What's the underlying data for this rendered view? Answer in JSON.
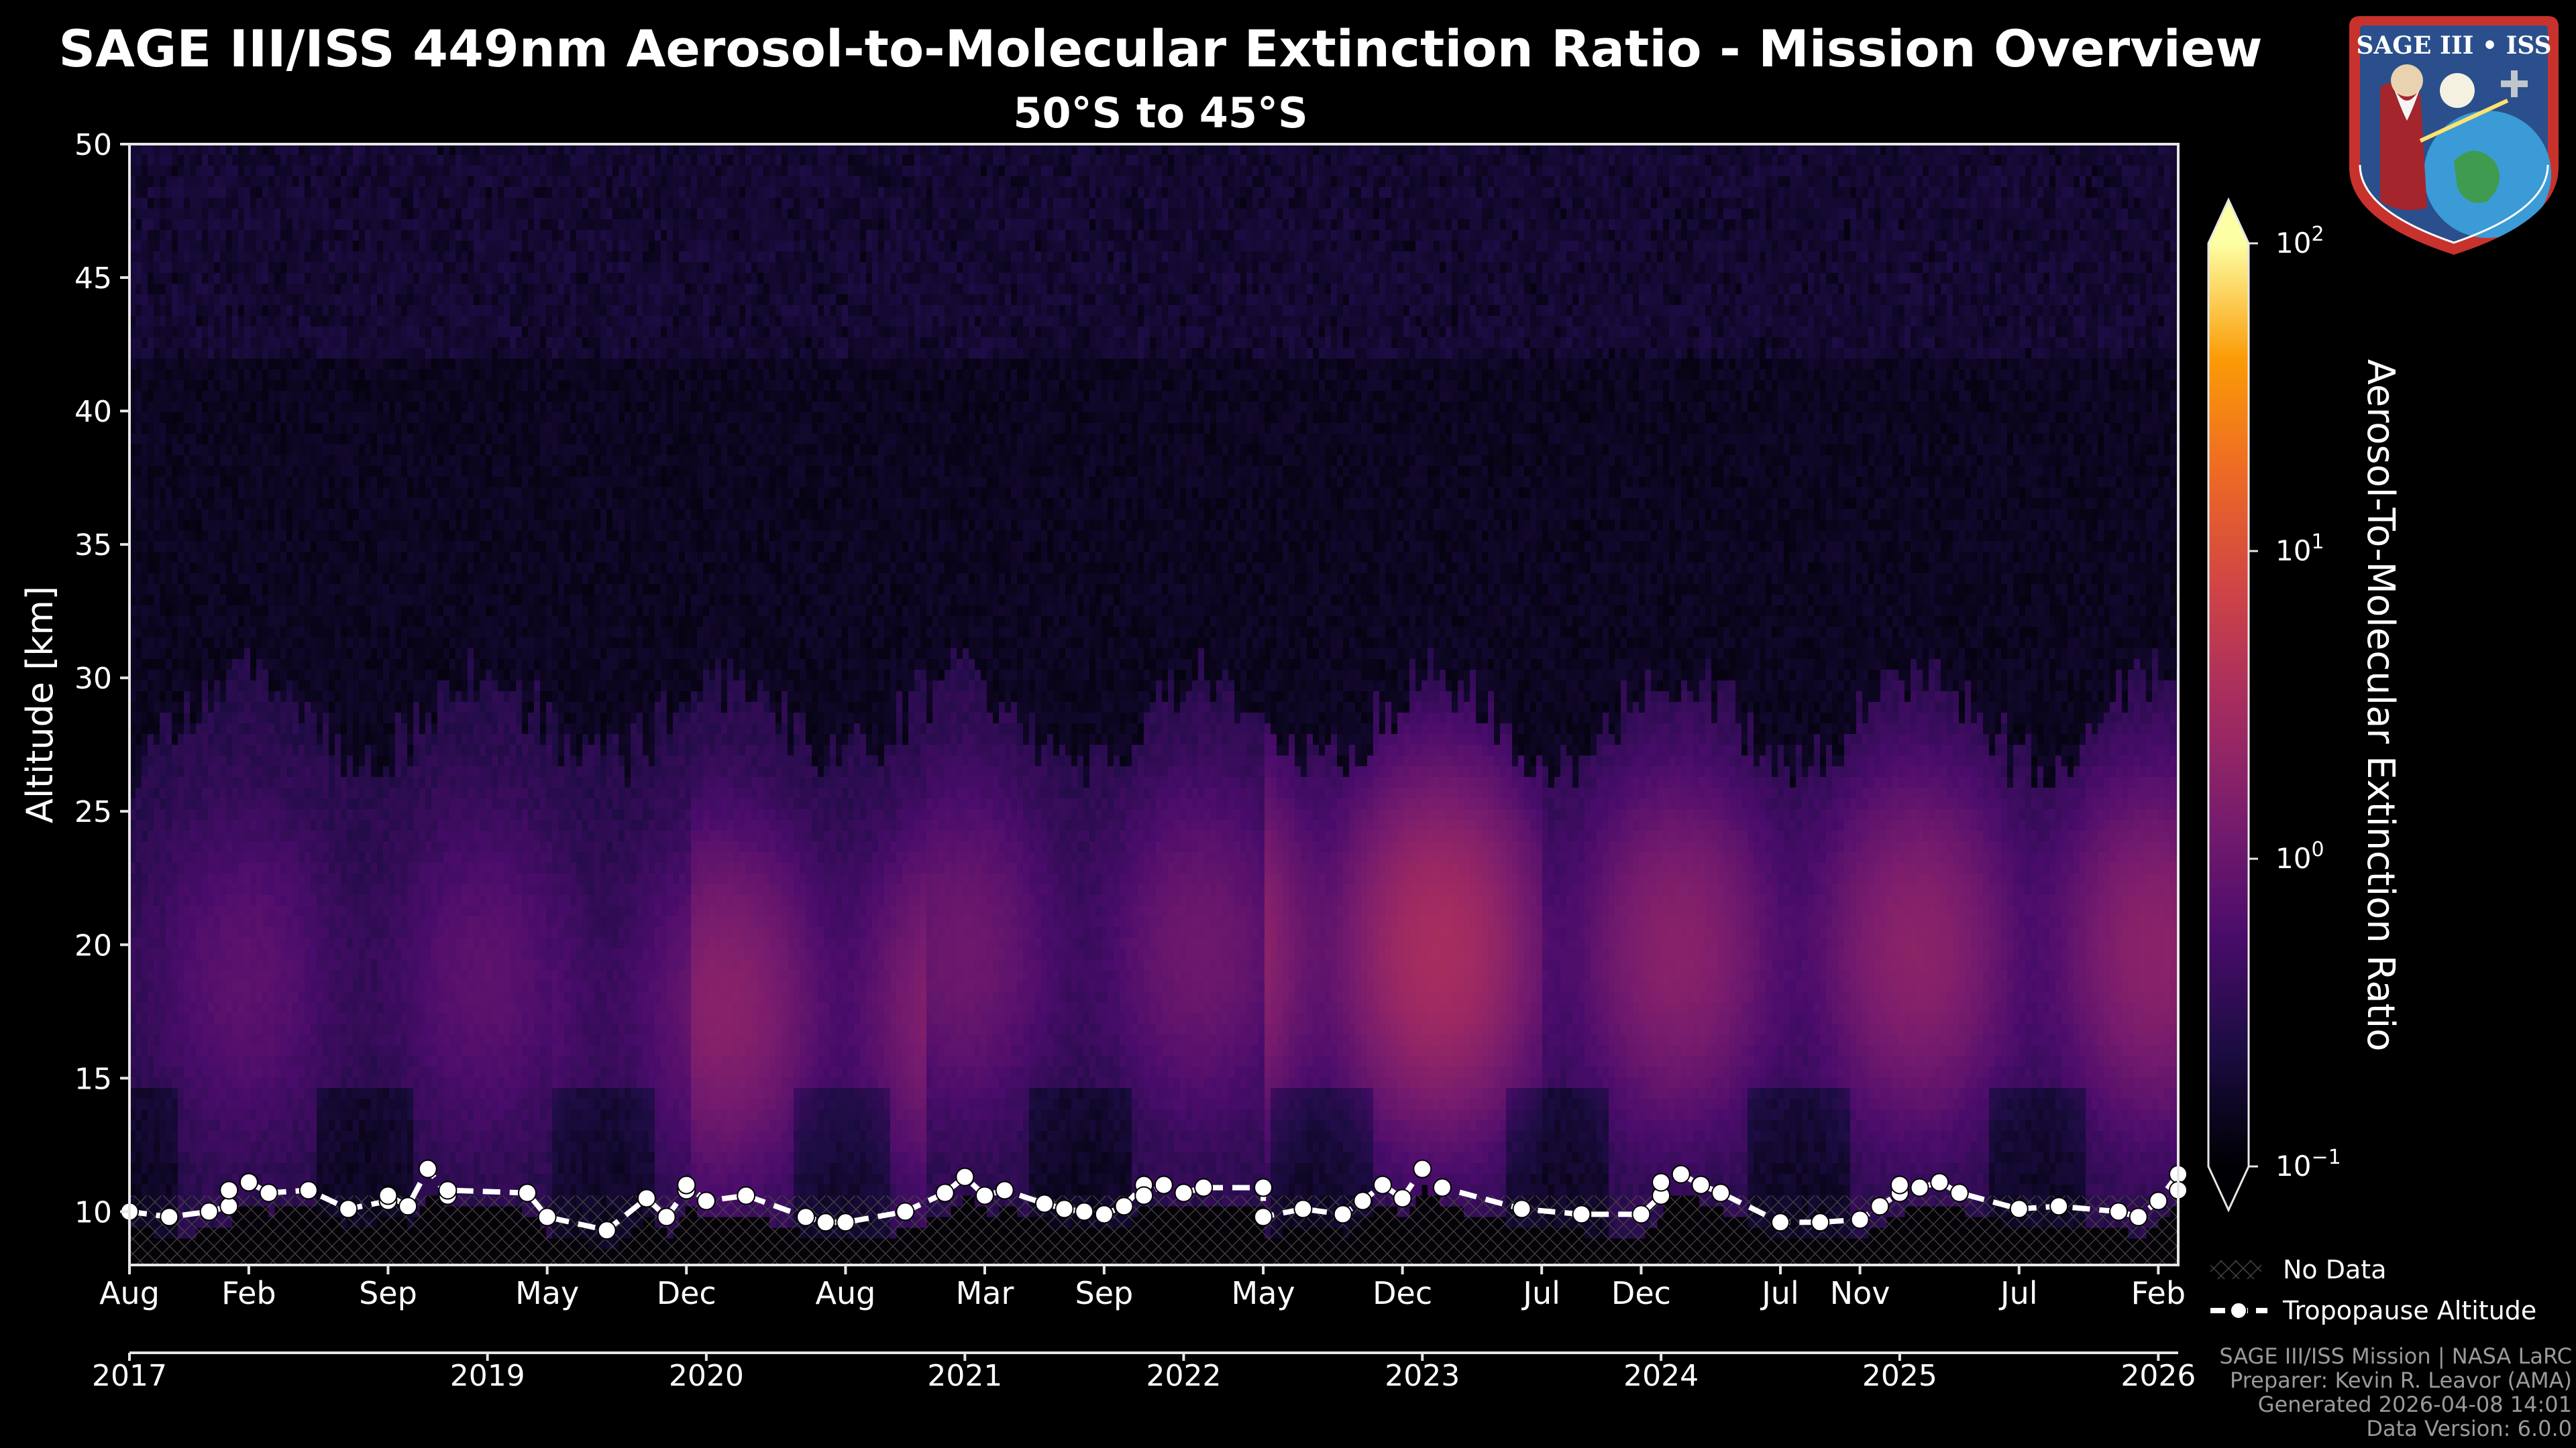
{
  "title": "SAGE III/ISS 449nm Aerosol-to-Molecular Extinction Ratio - Mission Overview",
  "subtitle": "50°S to 45°S",
  "logo": {
    "name": "SAGE III • ISS",
    "icon": "sage-iii-iss-mission-patch"
  },
  "footer": {
    "line1": "SAGE III/ISS Mission | NASA LaRC",
    "line2": "Preparer: Kevin R. Leavor (AMA)",
    "line3": "Generated 2026-04-08 14:01",
    "line4": "Data Version: 6.0.0"
  },
  "chart_data": {
    "type": "heatmap",
    "ylabel": "Altitude [km]",
    "ylim": [
      8,
      50
    ],
    "yticks": [
      10,
      15,
      20,
      25,
      30,
      35,
      40,
      45,
      50
    ],
    "xlim": [
      "2017-08",
      "2026-03"
    ],
    "x_month_ticks": [
      {
        "date": "2017-08",
        "label": "Aug"
      },
      {
        "date": "2018-02",
        "label": "Feb"
      },
      {
        "date": "2018-09",
        "label": "Sep"
      },
      {
        "date": "2019-05",
        "label": "May"
      },
      {
        "date": "2019-12",
        "label": "Dec"
      },
      {
        "date": "2020-08",
        "label": "Aug"
      },
      {
        "date": "2021-03",
        "label": "Mar"
      },
      {
        "date": "2021-09",
        "label": "Sep"
      },
      {
        "date": "2022-05",
        "label": "May"
      },
      {
        "date": "2022-12",
        "label": "Dec"
      },
      {
        "date": "2023-07",
        "label": "Jul"
      },
      {
        "date": "2023-12",
        "label": "Dec"
      },
      {
        "date": "2024-07",
        "label": "Jul"
      },
      {
        "date": "2024-11",
        "label": "Nov"
      },
      {
        "date": "2025-07",
        "label": "Jul"
      },
      {
        "date": "2026-02",
        "label": "Feb"
      }
    ],
    "x_year_ticks": [
      {
        "date": "2017-08",
        "label": "2017"
      },
      {
        "date": "2019-02",
        "label": "2019"
      },
      {
        "date": "2020-01",
        "label": "2020"
      },
      {
        "date": "2021-02",
        "label": "2021"
      },
      {
        "date": "2022-01",
        "label": "2022"
      },
      {
        "date": "2023-01",
        "label": "2023"
      },
      {
        "date": "2024-01",
        "label": "2024"
      },
      {
        "date": "2025-01",
        "label": "2025"
      },
      {
        "date": "2026-02",
        "label": "2026"
      }
    ],
    "colorbar": {
      "label": "Aerosol-To-Molecular Extinction Ratio",
      "scale": "log",
      "range": [
        0.1,
        100
      ],
      "ticks": [
        {
          "value": 100,
          "base": "10",
          "exp": "2"
        },
        {
          "value": 10,
          "base": "10",
          "exp": "1"
        },
        {
          "value": 1,
          "base": "10",
          "exp": "0"
        },
        {
          "value": 0.1,
          "base": "10",
          "exp": "−1"
        }
      ],
      "colormap": "inferno",
      "extend": "both"
    },
    "aerosol_layer_episodes": [
      {
        "start": "2017-08",
        "end": "2019-05",
        "peak_altitude_km": 19,
        "peak_ratio": 0.5
      },
      {
        "start": "2019-05",
        "end": "2019-12",
        "peak_altitude_km": 18,
        "peak_ratio": 0.7
      },
      {
        "start": "2019-12",
        "end": "2020-12",
        "peak_altitude_km": 18,
        "peak_ratio": 1.5
      },
      {
        "start": "2020-12",
        "end": "2022-05",
        "peak_altitude_km": 20,
        "peak_ratio": 0.8
      },
      {
        "start": "2022-05",
        "end": "2023-07",
        "peak_altitude_km": 20,
        "peak_ratio": 3.0
      },
      {
        "start": "2023-07",
        "end": "2024-07",
        "peak_altitude_km": 20,
        "peak_ratio": 1.5
      },
      {
        "start": "2024-07",
        "end": "2026-03",
        "peak_altitude_km": 20,
        "peak_ratio": 1.6
      }
    ],
    "legend": {
      "position": "bottom-right",
      "entries": [
        {
          "label": "No Data",
          "style": "hatch"
        },
        {
          "label": "Tropopause Altitude",
          "style": "dashed-line-with-markers"
        }
      ]
    },
    "series": [
      {
        "name": "Tropopause Altitude",
        "x": [
          "2017-08",
          "2017-10",
          "2017-12",
          "2018-01",
          "2018-01",
          "2018-02",
          "2018-02",
          "2018-03",
          "2018-05",
          "2018-07",
          "2018-09",
          "2018-09",
          "2018-10",
          "2018-11",
          "2018-12",
          "2018-12",
          "2019-04",
          "2019-05",
          "2019-08",
          "2019-10",
          "2019-11",
          "2019-12",
          "2019-12",
          "2020-01",
          "2020-03",
          "2020-06",
          "2020-07",
          "2020-08",
          "2020-11",
          "2021-01",
          "2021-02",
          "2021-03",
          "2021-04",
          "2021-06",
          "2021-07",
          "2021-08",
          "2021-09",
          "2021-10",
          "2021-11",
          "2021-11",
          "2021-12",
          "2022-01",
          "2022-02",
          "2022-05",
          "2022-05",
          "2022-07",
          "2022-09",
          "2022-10",
          "2022-11",
          "2022-12",
          "2023-01",
          "2023-02",
          "2023-06",
          "2023-09",
          "2023-12",
          "2024-01",
          "2024-01",
          "2024-02",
          "2024-03",
          "2024-04",
          "2024-07",
          "2024-09",
          "2024-11",
          "2024-12",
          "2025-01",
          "2025-01",
          "2025-02",
          "2025-03",
          "2025-04",
          "2025-07",
          "2025-09",
          "2025-12",
          "2026-01",
          "2026-02",
          "2026-03",
          "2026-03"
        ],
        "y": [
          10.0,
          9.8,
          10.0,
          10.2,
          10.8,
          11.1,
          11.1,
          10.7,
          10.8,
          10.1,
          10.4,
          10.6,
          10.2,
          11.6,
          10.6,
          10.8,
          10.7,
          9.8,
          9.3,
          10.5,
          9.8,
          10.8,
          11.0,
          10.4,
          10.6,
          9.8,
          9.6,
          9.6,
          10.0,
          10.7,
          11.3,
          10.6,
          10.8,
          10.3,
          10.1,
          10.0,
          9.9,
          10.2,
          11.0,
          10.6,
          11.0,
          10.7,
          10.9,
          10.9,
          9.8,
          10.1,
          9.9,
          10.4,
          11.0,
          10.5,
          11.6,
          10.9,
          10.1,
          9.9,
          9.9,
          10.6,
          11.1,
          11.4,
          11.0,
          10.7,
          9.6,
          9.6,
          9.7,
          10.2,
          10.7,
          11.0,
          10.9,
          11.1,
          10.7,
          10.1,
          10.2,
          10.0,
          9.8,
          10.4,
          11.4,
          10.8
        ]
      }
    ]
  }
}
